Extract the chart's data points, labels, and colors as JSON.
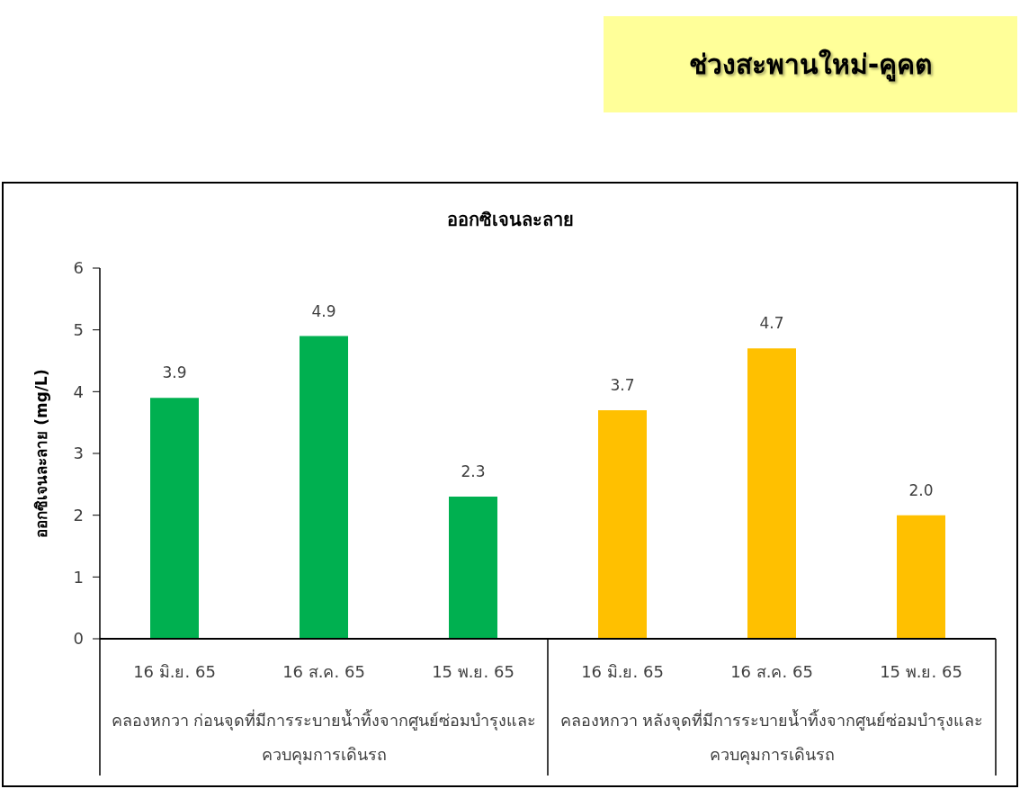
{
  "chart_data": {
    "type": "bar",
    "title": "ช่วงสะพานใหม่-คูคต",
    "subtitle": "ออกซิเจนละลาย",
    "ylabel": "ออกซิเจนละลาย (mg/L)",
    "categories": [
      "16 มิ.ย. 65",
      "16 ส.ค. 65",
      "15 พ.ย. 65",
      "16 มิ.ย. 65",
      "16 ส.ค. 65",
      "15 พ.ย. 65"
    ],
    "values": [
      3.9,
      4.9,
      2.3,
      3.7,
      4.7,
      2.0
    ],
    "colors": [
      "#00b050",
      "#00b050",
      "#00b050",
      "#ffc000",
      "#ffc000",
      "#ffc000"
    ],
    "value_labels": [
      "3.9",
      "4.9",
      "2.3",
      "3.7",
      "4.7",
      "2.0"
    ],
    "annotations": [
      "คลองหกวา ก่อนจุดที่มีการระบายน้ำทิ้งจากศูนย์ซ่อมบำรุงและควบคุมการเดินรถ",
      "คลองหกวา หลังจุดที่มีการระบายน้ำทิ้งจากศูนย์ซ่อมบำรุงและควบคุมการเดินรถ"
    ],
    "ylim": [
      0,
      6
    ],
    "yticks": [
      0,
      1,
      2,
      3,
      4,
      5,
      6
    ]
  }
}
